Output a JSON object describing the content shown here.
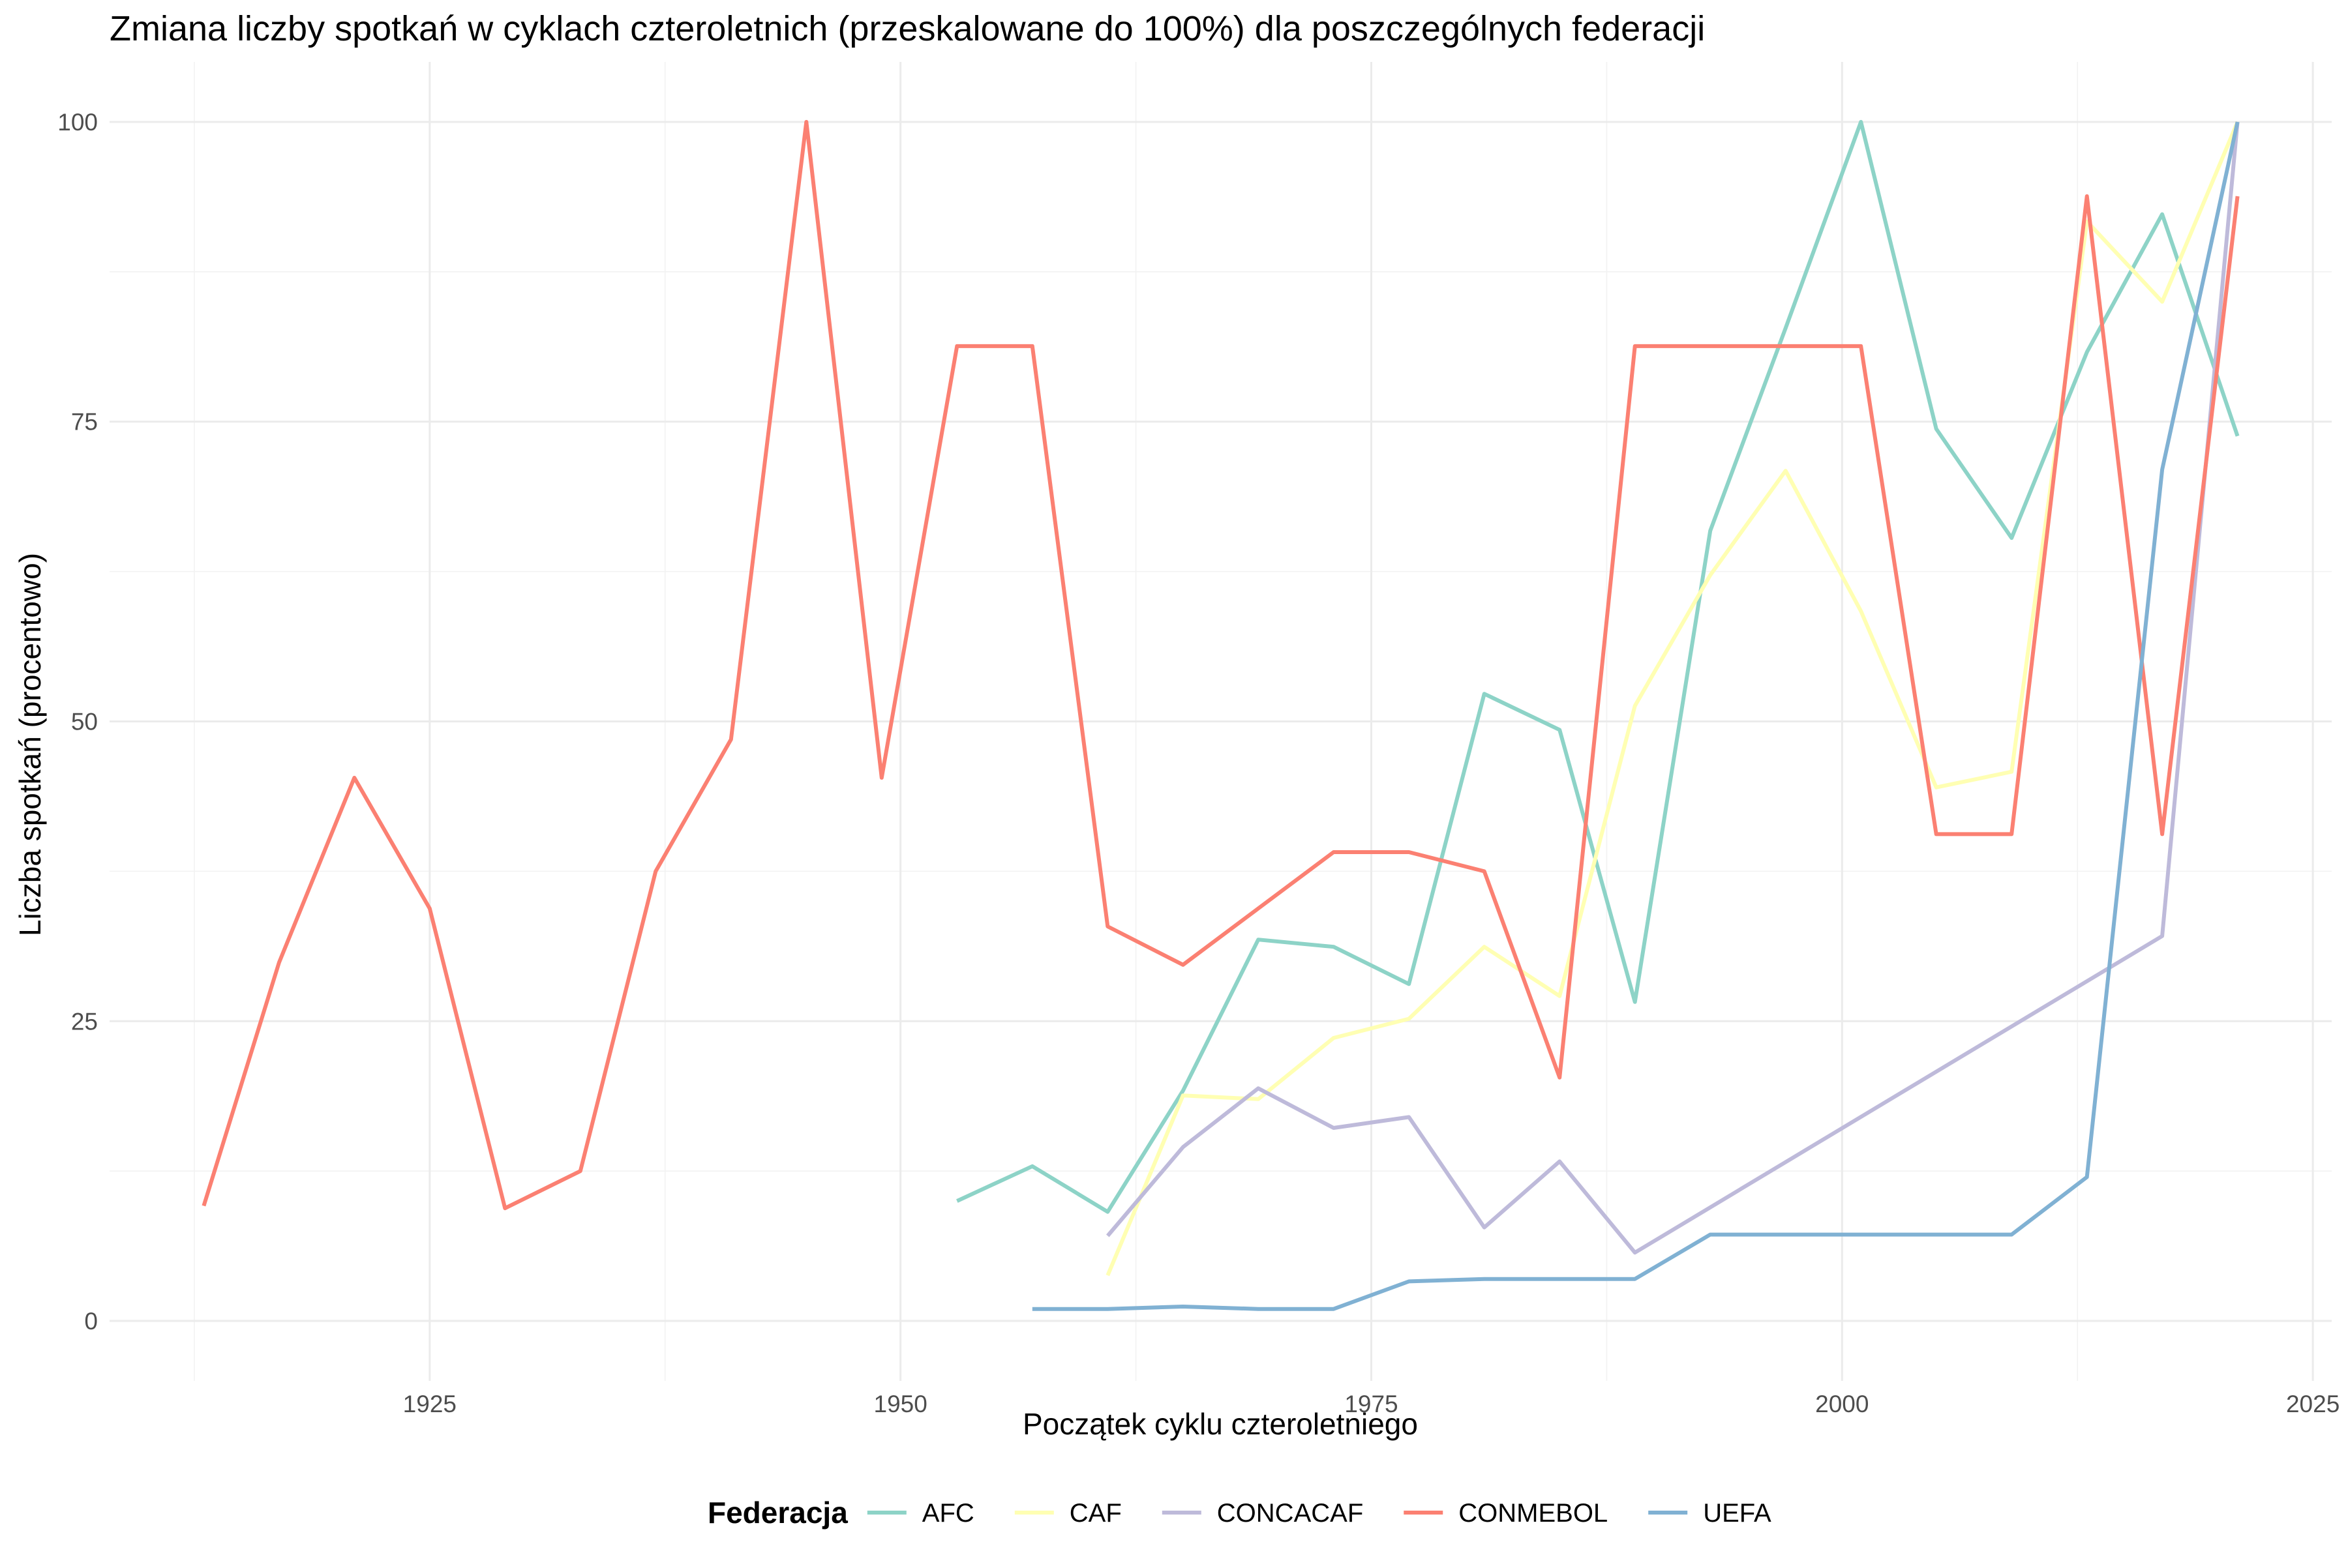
{
  "chart_data": {
    "type": "line",
    "title": "Zmiana liczby spotkań w cyklach czteroletnich (przeskalowane do 100%) dla poszczególnych federacji",
    "xlabel": "Początek cyklu czteroletniego",
    "ylabel": "Liczba spotkań (procentowo)",
    "xlim": [
      1908,
      2026
    ],
    "ylim": [
      -5,
      105
    ],
    "x_ticks": [
      1925,
      1950,
      1975,
      2000,
      2025
    ],
    "y_ticks": [
      0,
      25,
      50,
      75,
      100
    ],
    "grid": true,
    "legend": {
      "title": "Federacja",
      "position": "bottom"
    },
    "series": [
      {
        "name": "AFC",
        "color": "#8DD3C7",
        "x": [
          1953,
          1957,
          1961,
          1965,
          1969,
          1973,
          1977,
          1981,
          1985,
          1989,
          1993,
          1997,
          2001,
          2005,
          2009,
          2013,
          2017,
          2021
        ],
        "y": [
          10,
          12.9,
          9.1,
          19.2,
          31.8,
          31.2,
          28.1,
          52.3,
          49.3,
          26.6,
          65.9,
          82.8,
          100,
          74.4,
          65.3,
          80.8,
          92.3,
          73.8
        ]
      },
      {
        "name": "CAF",
        "color": "#FFFFB3",
        "x": [
          1961,
          1965,
          1969,
          1973,
          1977,
          1981,
          1985,
          1989,
          1993,
          1997,
          2001,
          2005,
          2009,
          2013,
          2017,
          2021
        ],
        "y": [
          3.8,
          18.8,
          18.5,
          23.6,
          25.2,
          31.2,
          27.1,
          51.3,
          62.2,
          70.9,
          59.2,
          44.5,
          45.8,
          91.7,
          85,
          100
        ]
      },
      {
        "name": "CONCACAF",
        "color": "#BEBADA",
        "x": [
          1961,
          1965,
          1969,
          1973,
          1977,
          1981,
          1985,
          1989,
          2017,
          2021
        ],
        "y": [
          7.1,
          14.5,
          19.4,
          16.1,
          17,
          7.8,
          13.3,
          5.7,
          32.1,
          100
        ]
      },
      {
        "name": "CONMEBOL",
        "color": "#FB8072",
        "x": [
          1913,
          1917,
          1921,
          1925,
          1929,
          1933,
          1937,
          1941,
          1945,
          1949,
          1953,
          1957,
          1961,
          1965,
          1969,
          1973,
          1977,
          1981,
          1985,
          1989,
          1993,
          1997,
          2001,
          2005,
          2009,
          2013,
          2017,
          2021
        ],
        "y": [
          9.6,
          29.9,
          45.3,
          34.4,
          9.4,
          12.5,
          37.5,
          48.5,
          100,
          45.3,
          81.3,
          81.3,
          32.9,
          29.7,
          34.4,
          39.1,
          39.1,
          37.5,
          20.3,
          81.3,
          81.3,
          81.3,
          81.3,
          40.6,
          40.6,
          93.8,
          40.6,
          93.8
        ]
      },
      {
        "name": "UEFA",
        "color": "#80B1D3",
        "x": [
          1957,
          1961,
          1965,
          1969,
          1973,
          1977,
          1981,
          1985,
          1989,
          1993,
          1997,
          2001,
          2005,
          2009,
          2013,
          2017,
          2021
        ],
        "y": [
          1,
          1,
          1.2,
          1,
          1,
          3.3,
          3.5,
          3.5,
          3.5,
          7.2,
          7.2,
          7.2,
          7.2,
          7.2,
          12,
          71,
          100
        ]
      }
    ]
  }
}
